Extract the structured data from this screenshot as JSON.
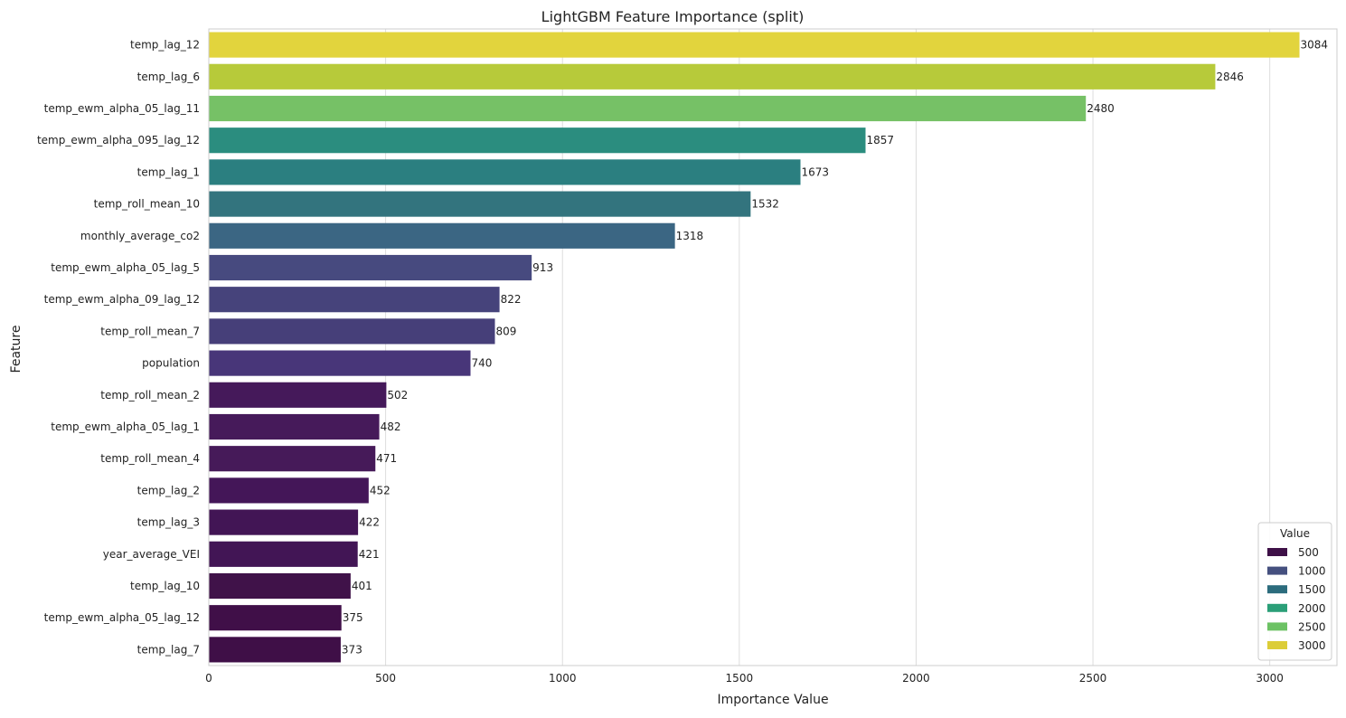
{
  "chart_data": {
    "type": "bar",
    "orientation": "horizontal",
    "title": "LightGBM Feature Importance (split)",
    "xlabel": "Importance Value",
    "ylabel": "Feature",
    "xlim": [
      0,
      3190
    ],
    "xticks": [
      0,
      500,
      1000,
      1500,
      2000,
      2500,
      3000
    ],
    "grid": "vertical",
    "colormap": "viridis",
    "categories": [
      "temp_lag_12",
      "temp_lag_6",
      "temp_ewm_alpha_05_lag_11",
      "temp_ewm_alpha_095_lag_12",
      "temp_lag_1",
      "temp_roll_mean_10",
      "monthly_average_co2",
      "temp_ewm_alpha_05_lag_5",
      "temp_ewm_alpha_09_lag_12",
      "temp_roll_mean_7",
      "population",
      "temp_roll_mean_2",
      "temp_ewm_alpha_05_lag_1",
      "temp_roll_mean_4",
      "temp_lag_2",
      "temp_lag_3",
      "year_average_VEI",
      "temp_lag_10",
      "temp_ewm_alpha_05_lag_12",
      "temp_lag_7"
    ],
    "values": [
      3084,
      2846,
      2480,
      1857,
      1673,
      1532,
      1318,
      913,
      822,
      809,
      740,
      502,
      482,
      471,
      452,
      422,
      421,
      401,
      375,
      373
    ],
    "bar_colors": [
      "#e2d43d",
      "#b7ca3a",
      "#76c166",
      "#2b8d7f",
      "#2b7f80",
      "#33747e",
      "#3b6683",
      "#474a7f",
      "#46437b",
      "#463f79",
      "#483679",
      "#45195a",
      "#461a5a",
      "#461a59",
      "#441658",
      "#421555",
      "#421555",
      "#401249",
      "#400f48",
      "#3f0f47"
    ],
    "legend": {
      "title": "Value",
      "position": "lower-right",
      "entries": [
        {
          "label": "500",
          "color": "#3e1047"
        },
        {
          "label": "1000",
          "color": "#45507f"
        },
        {
          "label": "1500",
          "color": "#2c6c7d"
        },
        {
          "label": "2000",
          "color": "#2b9f78"
        },
        {
          "label": "2500",
          "color": "#6cc264"
        },
        {
          "label": "3000",
          "color": "#dccd38"
        }
      ]
    }
  }
}
